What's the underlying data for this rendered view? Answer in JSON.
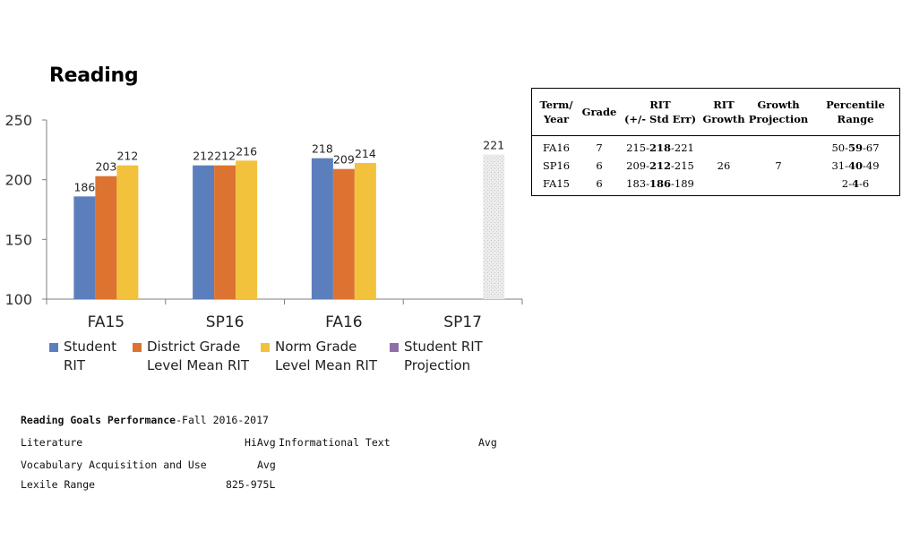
{
  "chart_data": {
    "type": "bar",
    "title": "Reading",
    "categories": [
      "FA15",
      "SP16",
      "FA16",
      "SP17"
    ],
    "series": [
      {
        "name": "Student RIT",
        "color": "#5b7fbd",
        "values": [
          186,
          212,
          218,
          null
        ]
      },
      {
        "name": "District Grade Level Mean RIT",
        "color": "#dd7330",
        "values": [
          203,
          212,
          209,
          null
        ]
      },
      {
        "name": "Norm Grade Level Mean RIT",
        "color": "#f3c23d",
        "values": [
          212,
          216,
          214,
          null
        ]
      },
      {
        "name": "Student RIT Projection",
        "color": "#8e6fa8",
        "values": [
          null,
          null,
          null,
          221
        ]
      }
    ],
    "data_labels": [
      [
        "186",
        "212",
        "218",
        ""
      ],
      [
        "203",
        "212",
        "209",
        ""
      ],
      [
        "212",
        "216",
        "214",
        ""
      ],
      [
        "",
        "",
        "",
        "221"
      ]
    ],
    "yticks": [
      "100",
      "150",
      "200",
      "250"
    ],
    "ylim": [
      100,
      250
    ],
    "xlabel": "",
    "ylabel": "",
    "legend_placement": "bottom"
  },
  "legend": {
    "items": [
      {
        "line1": "Student",
        "line2": "RIT",
        "color": "#5b7fbd"
      },
      {
        "line1": "District Grade",
        "line2": "Level Mean RIT",
        "color": "#dd7330"
      },
      {
        "line1": "Norm Grade",
        "line2": "Level Mean RIT",
        "color": "#f3c23d"
      },
      {
        "line1": "Student RIT",
        "line2": "Projection",
        "color": "#8e6fa8"
      }
    ]
  },
  "rit_table": {
    "headers": [
      "Term/\nYear",
      "Grade",
      "RIT\n(+/- Std Err)",
      "RIT\nGrowth",
      "Growth\nProjection",
      "Percentile\nRange"
    ],
    "rows": [
      {
        "term": "FA16",
        "grade": "7",
        "rit_lo": "215-",
        "rit_mid": "218",
        "rit_hi": "-221",
        "growth": "",
        "projection": "",
        "pct_lo": "50-",
        "pct_mid": "59",
        "pct_hi": "-67"
      },
      {
        "term": "SP16",
        "grade": "6",
        "rit_lo": "209-",
        "rit_mid": "212",
        "rit_hi": "-215",
        "growth": "26",
        "projection": "7",
        "pct_lo": "31-",
        "pct_mid": "40",
        "pct_hi": "-49"
      },
      {
        "term": "FA15",
        "grade": "6",
        "rit_lo": "183-",
        "rit_mid": "186",
        "rit_hi": "-189",
        "growth": "",
        "projection": "",
        "pct_lo": "2-",
        "pct_mid": "4",
        "pct_hi": "-6"
      }
    ]
  },
  "goals": {
    "heading_bold": "Reading Goals Performance",
    "heading_rest": "-Fall 2016-2017",
    "literature_label": "Literature",
    "literature_value": "HiAvg",
    "informational_label": "Informational Text",
    "informational_value": "Avg",
    "vocab_label": "Vocabulary Acquisition and Use",
    "vocab_value": "Avg",
    "lexile_label": "Lexile Range",
    "lexile_value": "825-975L"
  }
}
